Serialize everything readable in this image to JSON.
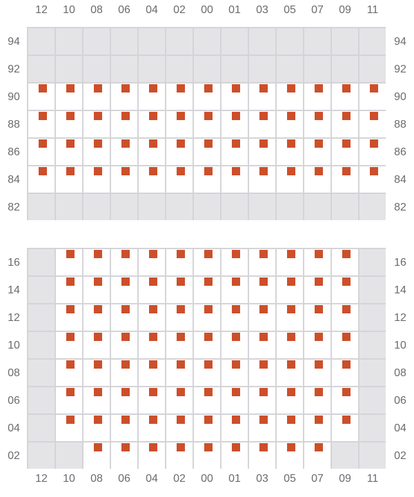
{
  "columns": [
    "12",
    "10",
    "08",
    "06",
    "04",
    "02",
    "00",
    "01",
    "03",
    "05",
    "07",
    "09",
    "11"
  ],
  "colors": {
    "marker": "#cc4f2a",
    "unavailable": "#e4e4e7",
    "grid_line": "#d4d4d8"
  },
  "sections": [
    {
      "rows": [
        {
          "label": "94",
          "cells": "-------------"
        },
        {
          "label": "92",
          "cells": "-------------"
        },
        {
          "label": "90",
          "cells": "XXXXXXXXXXXXX"
        },
        {
          "label": "88",
          "cells": "XXXXXXXXXXXXX"
        },
        {
          "label": "86",
          "cells": "XXXXXXXXXXXXX"
        },
        {
          "label": "84",
          "cells": "XXXXXXXXXXXXX"
        },
        {
          "label": "82",
          "cells": "-------------"
        }
      ]
    },
    {
      "rows": [
        {
          "label": "16",
          "cells": "-XXXXXXXXXXX-"
        },
        {
          "label": "14",
          "cells": "-XXXXXXXXXXX-"
        },
        {
          "label": "12",
          "cells": "-XXXXXXXXXXX-"
        },
        {
          "label": "10",
          "cells": "-XXXXXXXXXXX-"
        },
        {
          "label": "08",
          "cells": "-XXXXXXXXXXX-"
        },
        {
          "label": "06",
          "cells": "-XXXXXXXXXXX-"
        },
        {
          "label": "04",
          "cells": "-XXXXXXXXXXX-"
        },
        {
          "label": "02",
          "cells": "--XXXXXXXXX--"
        }
      ]
    }
  ]
}
